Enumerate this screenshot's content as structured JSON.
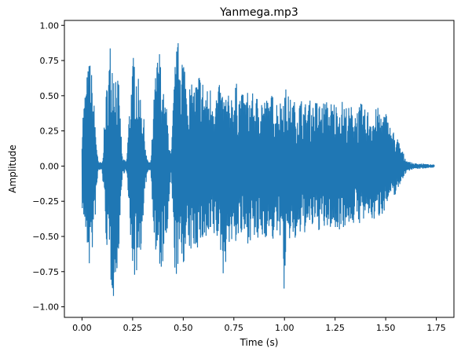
{
  "chart_data": {
    "type": "line",
    "title": "Yanmega.mp3",
    "xlabel": "Time (s)",
    "ylabel": "Amplitude",
    "xlim": [
      -0.087,
      1.837
    ],
    "ylim": [
      -1.075,
      1.035
    ],
    "xticks": [
      0.0,
      0.25,
      0.5,
      0.75,
      1.0,
      1.25,
      1.5,
      1.75
    ],
    "xtick_labels": [
      "0.00",
      "0.25",
      "0.50",
      "0.75",
      "1.00",
      "1.25",
      "1.50",
      "1.75"
    ],
    "yticks": [
      -1.0,
      -0.75,
      -0.5,
      -0.25,
      0.0,
      0.25,
      0.5,
      0.75,
      1.0
    ],
    "ytick_labels": [
      "−1.00",
      "−0.75",
      "−0.50",
      "−0.25",
      "0.00",
      "0.25",
      "0.50",
      "0.75",
      "1.00"
    ],
    "grid": false,
    "line_color": "#1f77b4",
    "series": [
      {
        "x": [
          0.0,
          0.02,
          0.04,
          0.06,
          0.08,
          0.1,
          0.12,
          0.14,
          0.16,
          0.18,
          0.2,
          0.22,
          0.24,
          0.26,
          0.28,
          0.3,
          0.32,
          0.34,
          0.36,
          0.38,
          0.4,
          0.42,
          0.44,
          0.46,
          0.48,
          0.5,
          0.52,
          0.54,
          0.56,
          0.58,
          0.6,
          0.62,
          0.64,
          0.66,
          0.68,
          0.7,
          0.72,
          0.74,
          0.76,
          0.78,
          0.8,
          0.82,
          0.84,
          0.86,
          0.88,
          0.9,
          0.92,
          0.94,
          0.96,
          0.98,
          1.0,
          1.02,
          1.04,
          1.06,
          1.08,
          1.1,
          1.12,
          1.14,
          1.16,
          1.18,
          1.2,
          1.22,
          1.24,
          1.26,
          1.28,
          1.3,
          1.32,
          1.34,
          1.36,
          1.38,
          1.4,
          1.42,
          1.44,
          1.46,
          1.48,
          1.5,
          1.52,
          1.54,
          1.56,
          1.58,
          1.6,
          1.62,
          1.64,
          1.66,
          1.68,
          1.7,
          1.72,
          1.74
        ],
        "y_upper": [
          0.35,
          0.62,
          0.8,
          0.45,
          0.03,
          0.03,
          0.55,
          0.92,
          0.8,
          0.62,
          0.05,
          0.04,
          0.6,
          0.88,
          0.6,
          0.45,
          0.05,
          0.03,
          0.62,
          0.9,
          0.55,
          0.4,
          0.06,
          0.78,
          0.94,
          0.85,
          0.62,
          0.58,
          0.6,
          0.7,
          0.62,
          0.55,
          0.6,
          0.55,
          0.58,
          0.55,
          0.5,
          0.55,
          0.6,
          0.55,
          0.5,
          0.55,
          0.52,
          0.5,
          0.55,
          0.5,
          0.48,
          0.52,
          0.5,
          0.48,
          0.6,
          0.5,
          0.48,
          0.45,
          0.5,
          0.45,
          0.48,
          0.45,
          0.48,
          0.45,
          0.48,
          0.45,
          0.48,
          0.45,
          0.48,
          0.45,
          0.42,
          0.45,
          0.42,
          0.45,
          0.4,
          0.42,
          0.4,
          0.42,
          0.4,
          0.4,
          0.3,
          0.25,
          0.2,
          0.12,
          0.05,
          0.03,
          0.02,
          0.02,
          0.02,
          0.015,
          0.012,
          0.01
        ],
        "y_lower": [
          -0.3,
          -0.55,
          -0.78,
          -0.5,
          -0.03,
          -0.04,
          -0.55,
          -0.85,
          -0.97,
          -0.65,
          -0.06,
          -0.04,
          -0.6,
          -0.83,
          -0.7,
          -0.5,
          -0.05,
          -0.03,
          -0.65,
          -0.8,
          -0.72,
          -0.55,
          -0.06,
          -0.82,
          -0.73,
          -0.7,
          -0.65,
          -0.62,
          -0.6,
          -0.58,
          -0.55,
          -0.6,
          -0.55,
          -0.52,
          -0.58,
          -0.82,
          -0.55,
          -0.58,
          -0.55,
          -0.52,
          -0.55,
          -0.55,
          -0.52,
          -0.58,
          -0.55,
          -0.52,
          -0.5,
          -0.55,
          -0.52,
          -0.5,
          -0.95,
          -0.55,
          -0.52,
          -0.6,
          -0.5,
          -0.48,
          -0.5,
          -0.45,
          -0.48,
          -0.45,
          -0.48,
          -0.45,
          -0.45,
          -0.5,
          -0.42,
          -0.45,
          -0.42,
          -0.42,
          -0.4,
          -0.42,
          -0.4,
          -0.38,
          -0.4,
          -0.38,
          -0.35,
          -0.3,
          -0.25,
          -0.22,
          -0.18,
          -0.1,
          -0.05,
          -0.03,
          -0.02,
          -0.02,
          -0.02,
          -0.015,
          -0.012,
          -0.01
        ]
      }
    ]
  }
}
